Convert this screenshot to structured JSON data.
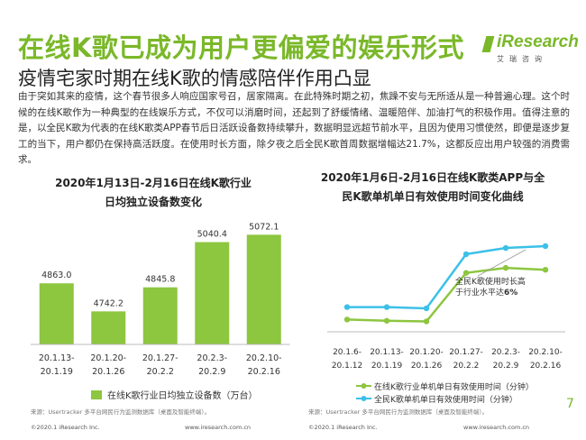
{
  "title": "在线K歌已成为用户更偏爱的娱乐形式",
  "subtitle": "疫情宅家时期在线K歌的情感陪伴作用凸显",
  "logo": {
    "brand": "iResearch",
    "cn": "艾瑞咨询"
  },
  "paragraph": "由于突如其来的疫情，这个春节很多人响应国家号召，居家隔离。在此特殊时期之初，焦躁不安与无所适从是一种普遍心理。这个时候的在线K歌作为一种典型的在线娱乐方式，不仅可以消磨时间，还起到了舒缓情绪、温暖陪伴、加油打气的积极作用。值得注意的是，以全民K歌为代表的在线K歌类APP春节后日活跃设备数持续攀升，数据明显远超节前水平，且因为使用习惯使然，即便是逐步复工的当下，用户都仍在保持高活跃度。在使用时长方面，除夕夜之后全民K歌首周数据增幅达21.7%，这都反应出用户较强的消费需求。",
  "chart_data": [
    {
      "type": "bar",
      "title": "2020年1月13日-2月16日在线K歌行业日均独立设备数变化",
      "categories": [
        "20.1.13-20.1.19",
        "20.1.20-20.1.26",
        "20.1.27-20.2.2",
        "20.2.3-20.2.9",
        "20.2.10-20.2.16"
      ],
      "series": [
        {
          "name": "在线K歌行业日均独立设备数（万台）",
          "values": [
            4863.0,
            4742.2,
            4845.8,
            5040.4,
            5072.1
          ]
        }
      ],
      "value_labels": [
        "4863.0",
        "4742.2",
        "4845.8",
        "5040.4",
        "5072.1"
      ],
      "bar_color": "#8dc63f",
      "ylim": [
        4600,
        5120
      ],
      "grid": false
    },
    {
      "type": "line",
      "title": "2020年1月6日-2月16日在线K歌类APP与全民K歌单机单日有效使用时间变化曲线",
      "categories": [
        "20.1.6-20.1.12",
        "20.1.13-20.1.19",
        "20.1.20-20.1.26",
        "20.1.27-20.2.2",
        "20.2.3-20.2.9",
        "20.2.10-20.2.16"
      ],
      "series": [
        {
          "name": "在线K歌行业单机单日有效使用时间（分钟）",
          "color": "#8dc63f",
          "values": [
            14.0,
            13.8,
            13.7,
            21.5,
            22.3,
            22.0
          ]
        },
        {
          "name": "全民K歌单机单日有效使用时间（分钟）",
          "color": "#3cc0e8",
          "values": [
            16.0,
            16.0,
            15.8,
            24.5,
            25.5,
            25.8
          ]
        }
      ],
      "ylim": [
        10,
        30
      ],
      "grid": false,
      "annotation": {
        "text_line1": "全民K歌使用时长高",
        "text_line2": "于行业水平达",
        "highlight": "6%"
      }
    }
  ],
  "source_left": "来源：Usertracker 多平台网民行为监测数据库（桌面及智能终端）。",
  "source_right": "来源：Usertracker 多平台网民行为监测数据库（桌面及智能终端）。",
  "footer_left": "©2020.1 iResearch Inc.",
  "footer_mid_left": "www.iresearch.com.cn",
  "footer_mid_right": "©2020.1 iResearch Inc.",
  "footer_right": "www.iresearch.com.cn",
  "page_number": "7",
  "colors": {
    "accent": "#7ab829",
    "bar": "#8dc63f",
    "line_blue": "#3cc0e8"
  }
}
